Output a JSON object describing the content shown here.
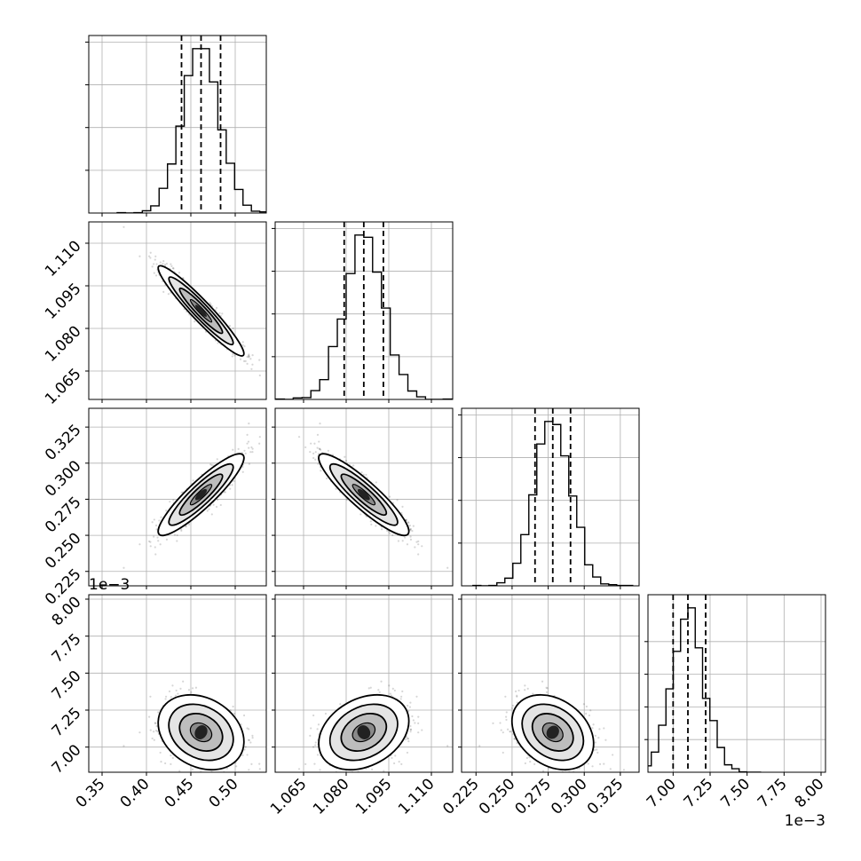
{
  "chart_data": {
    "type": "corner",
    "parameters": [
      {
        "name": "",
        "range": [
          0.335,
          0.535
        ],
        "ticks": [
          0.35,
          0.4,
          0.45,
          0.5
        ],
        "tick_labels": [
          "0.35",
          "0.40",
          "0.45",
          "0.50"
        ],
        "quantiles": [
          0.4395,
          0.4615,
          0.4835
        ],
        "mean": 0.4615,
        "sd": 0.021
      },
      {
        "name": "",
        "range": [
          1.055,
          1.1175
        ],
        "ticks": [
          1.065,
          1.08,
          1.095,
          1.11
        ],
        "tick_labels": [
          "1.065",
          "1.080",
          "1.095",
          "1.110"
        ],
        "quantiles": [
          1.0793,
          1.0862,
          1.0931
        ],
        "mean": 1.0862,
        "sd": 0.0069
      },
      {
        "name": "",
        "range": [
          0.215,
          0.338
        ],
        "ticks": [
          0.225,
          0.25,
          0.275,
          0.3,
          0.325
        ],
        "tick_labels": [
          "0.225",
          "0.250",
          "0.275",
          "0.300",
          "0.325"
        ],
        "quantiles": [
          0.2659,
          0.2782,
          0.2905
        ],
        "mean": 0.2782,
        "sd": 0.0123
      },
      {
        "name": "",
        "range": [
          6.83,
          8.03
        ],
        "ticks": [
          7.0,
          7.25,
          7.5,
          7.75,
          8.0
        ],
        "tick_labels": [
          "7.00",
          "7.25",
          "7.50",
          "7.75",
          "8.00"
        ],
        "quantiles": [
          7.0,
          7.1,
          7.22
        ],
        "mean": 7.1,
        "sd": 0.11,
        "offset_label": "1e−3"
      }
    ],
    "correlations": {
      "1-0": -0.95,
      "2-0": 0.9,
      "2-1": -0.9,
      "3-0": -0.25,
      "3-1": 0.3,
      "3-2": -0.3
    },
    "histogram_bins": 20,
    "quantile_style": "dashed",
    "grid": true,
    "contour_levels_sigma": [
      0.5,
      1.0,
      1.5,
      2.0
    ]
  }
}
